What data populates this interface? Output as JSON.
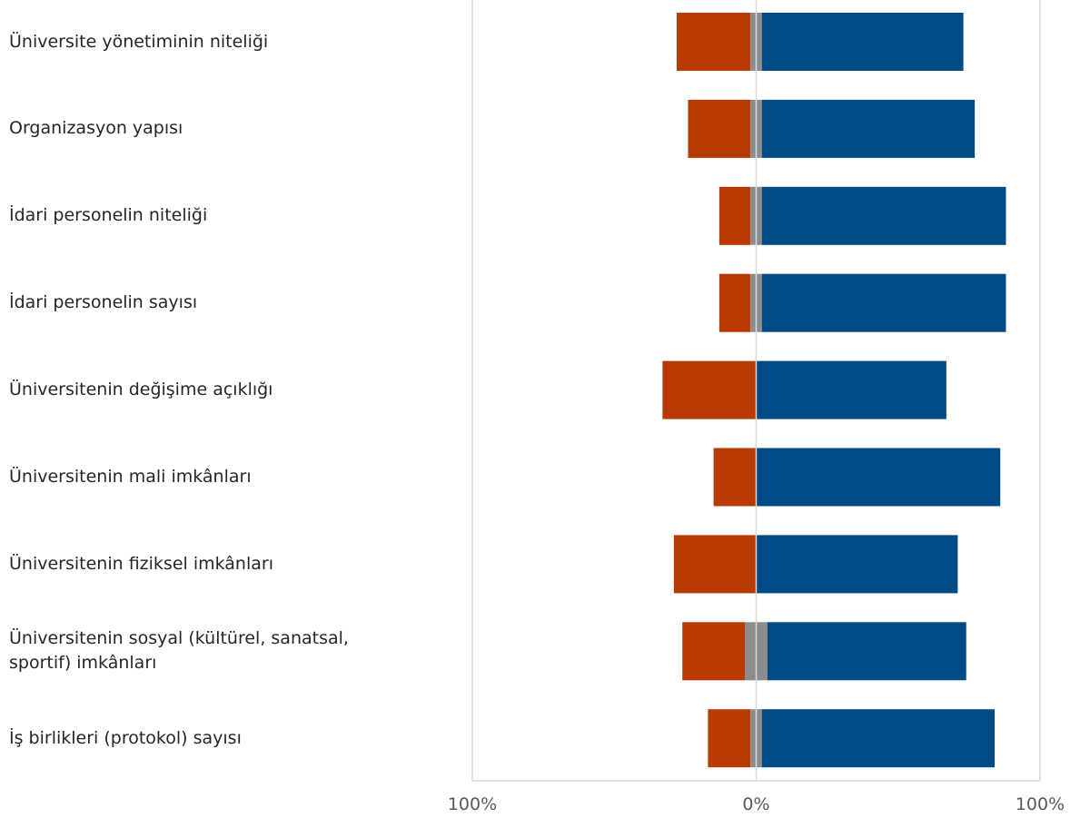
{
  "chart_data": {
    "type": "bar",
    "orientation": "horizontal",
    "stacking": "diverging",
    "categories": [
      "Üniversite yönetiminin niteliği",
      "Organizasyon yapısı",
      "İdari personelin niteliği",
      "İdari personelin sayısı",
      "Üniversitenin değişime açıklığı",
      "Üniversitenin mali imkânları",
      "Üniversitenin fiziksel imkânları",
      "Üniversitenin sosyal (kültürel, sanatsal, sportif) imkânları",
      "İş birlikleri (protokol) sayısı"
    ],
    "series": [
      {
        "color": "#BA3A03",
        "side": "negative",
        "values": [
          26,
          22,
          11,
          11,
          33,
          15,
          29,
          22,
          15
        ]
      },
      {
        "color": "#8C8C8C",
        "side": "center",
        "values": [
          4,
          4,
          4,
          4,
          0,
          0,
          0,
          8,
          4
        ]
      },
      {
        "color": "#004A86",
        "side": "positive",
        "values": [
          71,
          75,
          86,
          86,
          67,
          86,
          71,
          70,
          82
        ]
      }
    ],
    "xlim": [
      -100,
      100
    ],
    "tick_labels": [
      "100%",
      "0%",
      "100%"
    ],
    "grid": true,
    "legend": "none",
    "title": "",
    "xlabel": "",
    "ylabel": ""
  }
}
